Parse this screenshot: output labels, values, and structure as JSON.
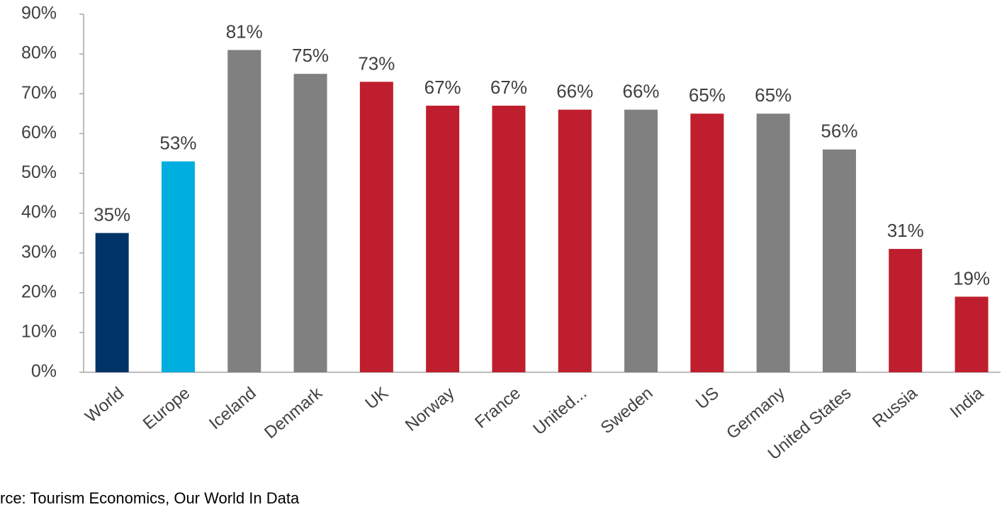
{
  "chart_data": {
    "type": "bar",
    "categories": [
      "World",
      "Europe",
      "Iceland",
      "Denmark",
      "UK",
      "Norway",
      "France",
      "United...",
      "Sweden",
      "US",
      "Germany",
      "United States",
      "Russia",
      "India"
    ],
    "values": [
      35,
      53,
      81,
      75,
      73,
      67,
      67,
      66,
      66,
      65,
      65,
      56,
      31,
      19
    ],
    "value_labels": [
      "35%",
      "53%",
      "81%",
      "75%",
      "73%",
      "67%",
      "67%",
      "66%",
      "66%",
      "65%",
      "65%",
      "56%",
      "31%",
      "19%"
    ],
    "colors": [
      "#003366",
      "#00aedf",
      "#808080",
      "#808080",
      "#be1e2d",
      "#be1e2d",
      "#be1e2d",
      "#be1e2d",
      "#808080",
      "#be1e2d",
      "#808080",
      "#808080",
      "#be1e2d",
      "#be1e2d"
    ],
    "ylim": [
      0,
      90
    ],
    "yticks": [
      {
        "value": 0,
        "label": "0%"
      },
      {
        "value": 10,
        "label": "10%"
      },
      {
        "value": 20,
        "label": "20%"
      },
      {
        "value": 30,
        "label": "30%"
      },
      {
        "value": 40,
        "label": "40%"
      },
      {
        "value": 50,
        "label": "50%"
      },
      {
        "value": 60,
        "label": "60%"
      },
      {
        "value": 70,
        "label": "70%"
      },
      {
        "value": 80,
        "label": "80%"
      },
      {
        "value": 90,
        "label": "90%"
      }
    ],
    "grid": false,
    "source": "rce: Tourism Economics, Our World In Data"
  }
}
